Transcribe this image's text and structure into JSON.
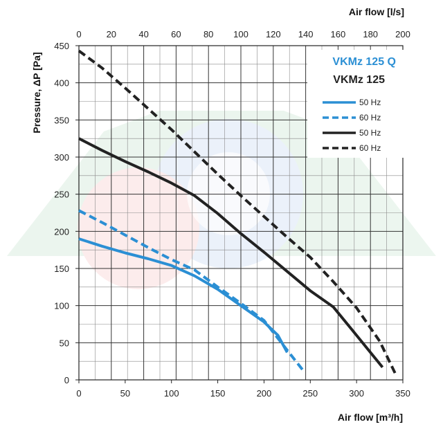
{
  "chart_data": {
    "type": "line",
    "xlabel": "Air flow [m³/h]",
    "x2label": "Air flow [l/s]",
    "ylabel": "Pressure,  ΔP [Pa]",
    "xlim": [
      0,
      350
    ],
    "x2lim": [
      0,
      200
    ],
    "ylim": [
      0,
      450
    ],
    "x_ticks": [
      "0",
      "50",
      "100",
      "150",
      "200",
      "250",
      "300",
      "350"
    ],
    "x2_ticks": [
      "0",
      "20",
      "40",
      "60",
      "80",
      "100",
      "120",
      "140",
      "160",
      "180",
      "200"
    ],
    "y_ticks": [
      "0",
      "50",
      "100",
      "150",
      "200",
      "250",
      "300",
      "350",
      "400",
      "450"
    ],
    "grid": true,
    "legend_placement": "top-right",
    "legend_groups": [
      {
        "title": "VKMz 125 Q",
        "color": "#2b8fd4"
      },
      {
        "title": "VKMz 125",
        "color": "#222222"
      }
    ],
    "series": [
      {
        "name": "50 Hz",
        "group": "VKMz 125 Q",
        "color": "#2b8fd4",
        "dash": "solid",
        "x": [
          0,
          25,
          50,
          75,
          100,
          125,
          150,
          175,
          200,
          215,
          225
        ],
        "y": [
          190,
          180,
          171,
          163,
          154,
          140,
          122,
          100,
          78,
          60,
          37
        ]
      },
      {
        "name": "60 Hz",
        "group": "VKMz 125 Q",
        "color": "#2b8fd4",
        "dash": "dashed",
        "x": [
          0,
          25,
          50,
          75,
          100,
          125,
          150,
          175,
          200,
          225,
          242
        ],
        "y": [
          228,
          212,
          195,
          178,
          162,
          148,
          125,
          103,
          80,
          40,
          13
        ]
      },
      {
        "name": "50 Hz",
        "group": "VKMz 125",
        "color": "#222222",
        "dash": "solid",
        "x": [
          0,
          25,
          50,
          75,
          100,
          125,
          150,
          175,
          200,
          225,
          250,
          275,
          300,
          328
        ],
        "y": [
          325,
          309,
          294,
          280,
          265,
          248,
          224,
          197,
          172,
          146,
          120,
          98,
          60,
          17
        ]
      },
      {
        "name": "60 Hz",
        "group": "VKMz 125",
        "color": "#222222",
        "dash": "dashed",
        "x": [
          0,
          25,
          50,
          75,
          100,
          125,
          150,
          175,
          200,
          225,
          250,
          275,
          300,
          325,
          342
        ],
        "y": [
          443,
          420,
          393,
          365,
          337,
          307,
          277,
          248,
          220,
          192,
          165,
          132,
          97,
          52,
          8
        ]
      }
    ]
  }
}
